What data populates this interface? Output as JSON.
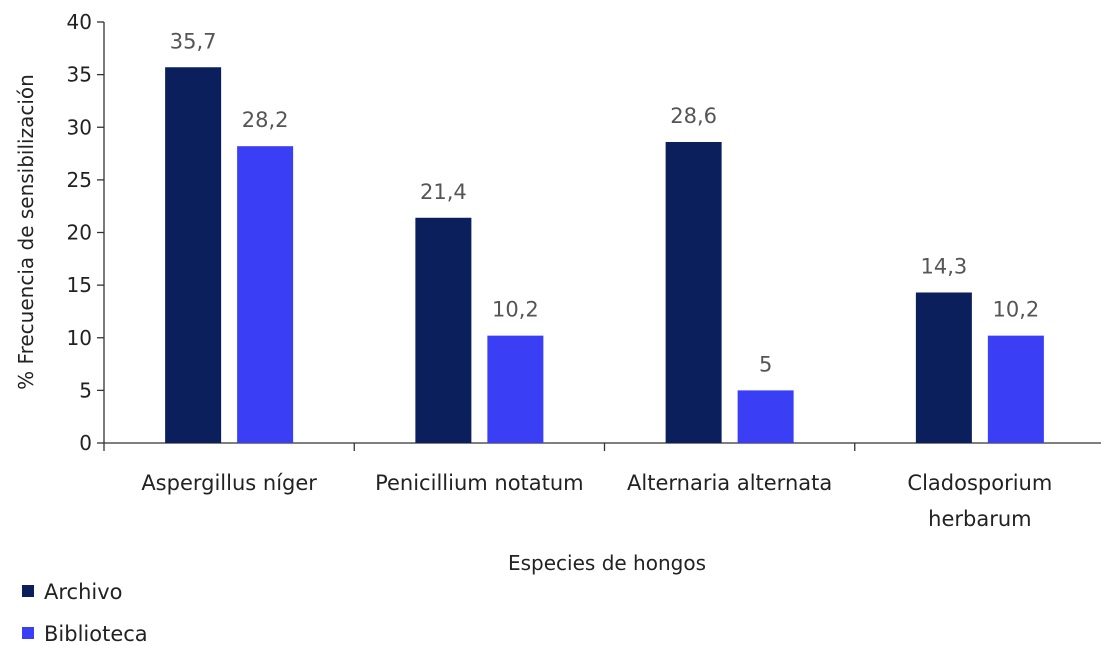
{
  "chart_data": {
    "type": "bar",
    "categories": [
      [
        "Aspergillus níger"
      ],
      [
        "Penicillium notatum"
      ],
      [
        "Alternaria alternata"
      ],
      [
        "Cladosporium",
        "herbarum"
      ]
    ],
    "series": [
      {
        "name": "Archivo",
        "color": "#0a1f5c",
        "values": [
          35.7,
          21.4,
          28.6,
          14.3
        ],
        "labels": [
          "35,7",
          "21,4",
          "28,6",
          "14,3"
        ]
      },
      {
        "name": "Biblioteca",
        "color": "#3a3ef5",
        "values": [
          28.2,
          10.2,
          5,
          10.2
        ],
        "labels": [
          "28,2",
          "10,2",
          "5",
          "10,2"
        ]
      }
    ],
    "title": "",
    "xlabel": "Especies de hongos",
    "ylabel": "% Frecuencia de sensibilización",
    "ylim": [
      0,
      40
    ],
    "yticks": [
      0,
      5,
      10,
      15,
      20,
      25,
      30,
      35,
      40
    ],
    "grid": false,
    "legend": "bottom-left"
  }
}
